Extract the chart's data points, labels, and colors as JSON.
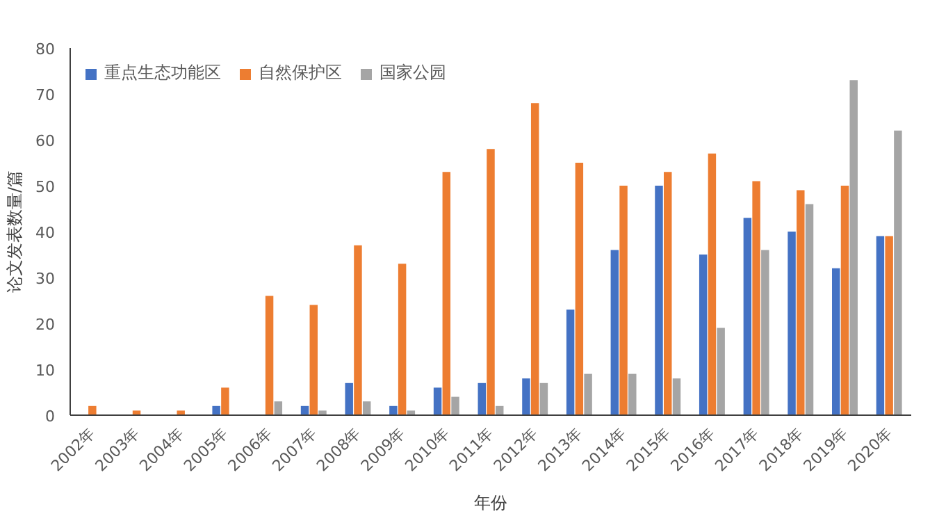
{
  "chart_data": {
    "type": "bar",
    "xlabel": "年份",
    "ylabel": "论文发表数量/篇",
    "categories": [
      "2002年",
      "2003年",
      "2004年",
      "2005年",
      "2006年",
      "2007年",
      "2008年",
      "2009年",
      "2010年",
      "2011年",
      "2012年",
      "2013年",
      "2014年",
      "2015年",
      "2016年",
      "2017年",
      "2018年",
      "2019年",
      "2020年"
    ],
    "series": [
      {
        "name": "重点生态功能区",
        "color": "#4472c4",
        "values": [
          0,
          0,
          0,
          2,
          0,
          2,
          7,
          2,
          6,
          7,
          8,
          23,
          36,
          50,
          35,
          43,
          40,
          32,
          39
        ]
      },
      {
        "name": "自然保护区",
        "color": "#ed7d31",
        "values": [
          2,
          1,
          1,
          6,
          26,
          24,
          37,
          33,
          53,
          58,
          68,
          55,
          50,
          53,
          57,
          51,
          49,
          50,
          39
        ]
      },
      {
        "name": "国家公园",
        "color": "#a5a5a5",
        "values": [
          0,
          0,
          0,
          0,
          3,
          1,
          3,
          1,
          4,
          2,
          7,
          9,
          9,
          8,
          19,
          36,
          46,
          73,
          62
        ]
      }
    ],
    "ylim": [
      0,
      80
    ],
    "yticks": [
      0,
      10,
      20,
      30,
      40,
      50,
      60,
      70,
      80
    ],
    "grid": false,
    "legend": "top left"
  }
}
